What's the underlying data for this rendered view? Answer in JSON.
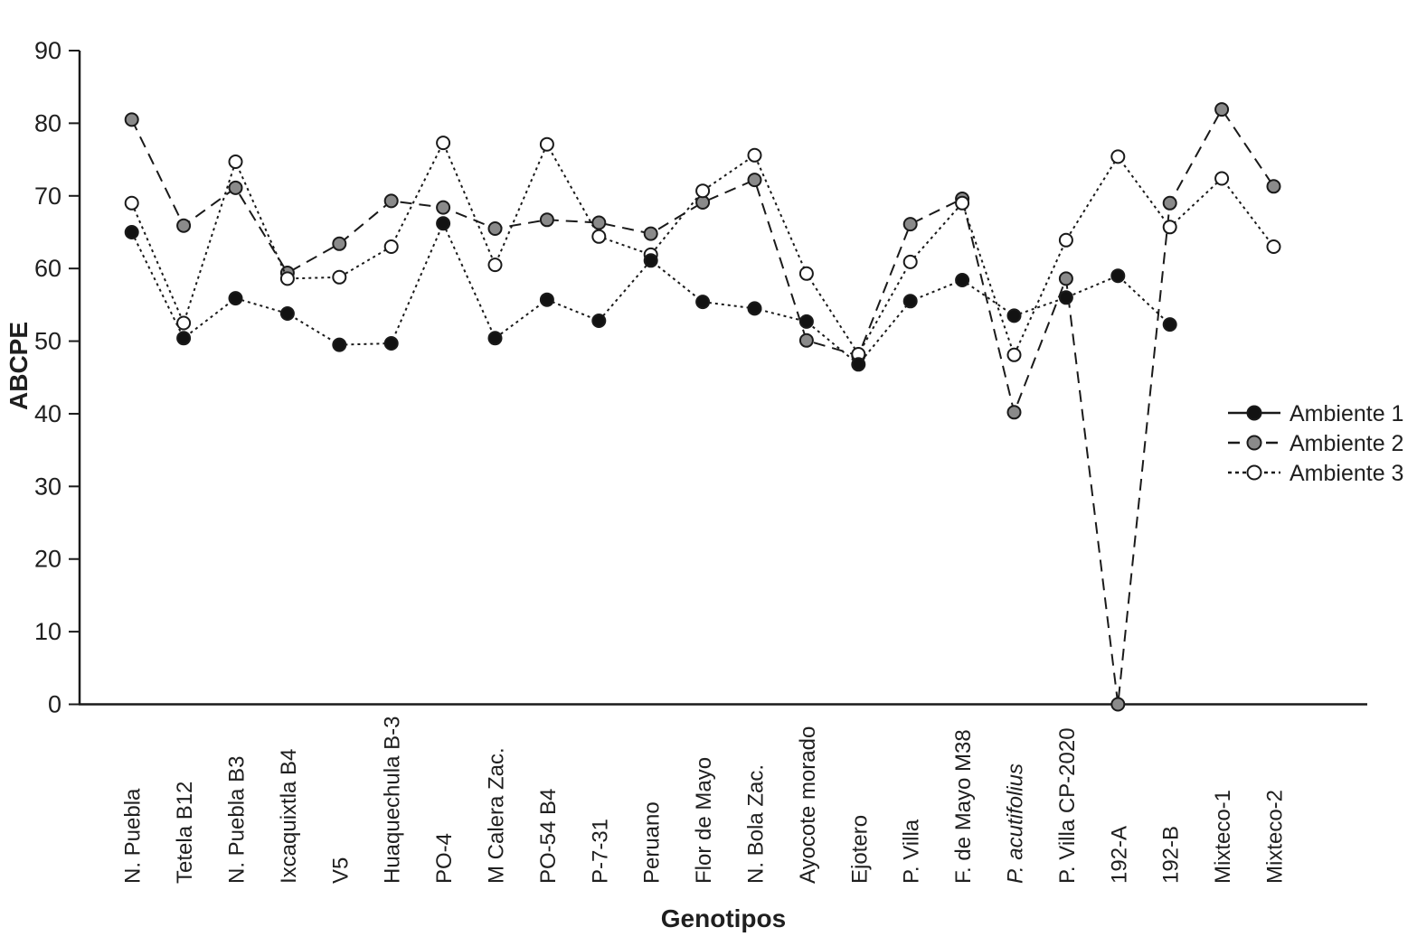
{
  "chart_data": {
    "type": "line",
    "title": "",
    "xlabel": "Genotipos",
    "ylabel": "ABCPE",
    "ylim": [
      0,
      90
    ],
    "yticks": [
      0,
      10,
      20,
      30,
      40,
      50,
      60,
      70,
      80,
      90
    ],
    "grid": false,
    "legend_position": "right-middle",
    "categories": [
      "N. Puebla",
      "Tetela B12",
      "N. Puebla B3",
      "Ixcaquixtla B4",
      "V5",
      "Huaquechula B-3",
      "PO-4",
      "M Calera Zac.",
      "PO-54 B4",
      "P-7-31",
      "Peruano",
      "Flor de Mayo",
      "N. Bola Zac.",
      "Ayocote morado",
      "Ejotero",
      "P. Villa",
      "F. de Mayo M38",
      "P. acutifolius",
      "P. Villa CP-2020",
      "192-A",
      "192-B",
      "Mixteco-1",
      "Mixteco-2"
    ],
    "italic_categories": [
      "P. acutifolius"
    ],
    "series": [
      {
        "name": "Ambiente 1",
        "marker": "filled-black-circle",
        "marker_fill": "#121212",
        "line_style": "dotted",
        "legend_line_style": "solid",
        "values": [
          65.0,
          50.4,
          55.9,
          53.8,
          49.5,
          49.7,
          66.2,
          50.4,
          55.7,
          52.8,
          61.1,
          55.4,
          54.5,
          52.7,
          46.8,
          55.5,
          58.4,
          53.5,
          56.0,
          59.0,
          52.3,
          null,
          null
        ]
      },
      {
        "name": "Ambiente 2",
        "marker": "filled-gray-circle",
        "marker_fill": "#8a8a8a",
        "line_style": "dashed",
        "legend_line_style": "dashed",
        "values": [
          80.5,
          65.9,
          71.1,
          59.4,
          63.4,
          69.3,
          68.4,
          65.5,
          66.7,
          66.3,
          64.8,
          69.1,
          72.2,
          50.1,
          48.0,
          66.1,
          69.6,
          40.2,
          58.6,
          0.0,
          69.0,
          81.9,
          71.3
        ]
      },
      {
        "name": "Ambiente 3",
        "marker": "open-white-circle",
        "marker_fill": "#ffffff",
        "line_style": "dotted",
        "legend_line_style": "dotted",
        "values": [
          69.0,
          52.5,
          74.7,
          58.6,
          58.8,
          63.0,
          77.3,
          60.5,
          77.1,
          64.4,
          61.9,
          70.7,
          75.6,
          59.3,
          48.2,
          60.9,
          69.0,
          48.1,
          63.9,
          75.4,
          65.7,
          72.4,
          63.0
        ]
      }
    ],
    "colors": {
      "axis": "#1a1a1a",
      "text": "#1f1f1f",
      "marker_outline": "#1a1a1a"
    }
  }
}
